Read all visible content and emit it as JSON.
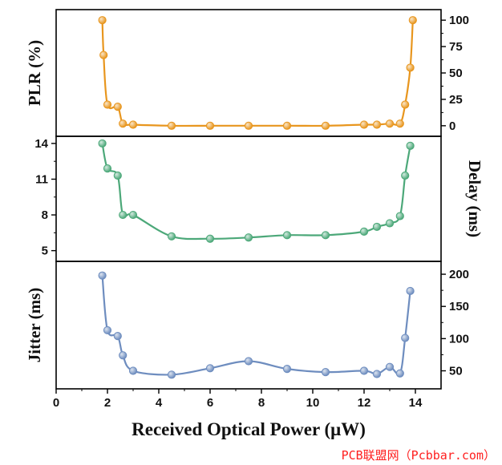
{
  "chart_data": {
    "type": "line",
    "xlabel": "Received Optical Power (μW)",
    "xlim": [
      0,
      15
    ],
    "xticks": [
      "0",
      "2",
      "4",
      "6",
      "8",
      "10",
      "12",
      "14"
    ],
    "panels": [
      {
        "name": "PLR",
        "ylabel": "PLR (%)",
        "ylabel_side": "left",
        "tick_side": "right",
        "ylim": [
          -10,
          110
        ],
        "yticks": [
          "0",
          "25",
          "50",
          "75",
          "100"
        ],
        "color": "#E8961E",
        "x": [
          1.8,
          1.85,
          2.0,
          2.4,
          2.6,
          3.0,
          4.5,
          6.0,
          7.5,
          9.0,
          10.5,
          12.0,
          12.5,
          13.0,
          13.4,
          13.6,
          13.8,
          13.9
        ],
        "values": [
          100,
          67,
          20,
          18,
          2,
          1,
          0,
          0,
          0,
          0,
          0,
          1,
          1,
          2,
          2,
          20,
          55,
          100
        ]
      },
      {
        "name": "Delay",
        "ylabel": "Delay (ms)",
        "ylabel_side": "right",
        "tick_side": "left",
        "ylim": [
          4.1,
          14.6
        ],
        "yticks": [
          "5",
          "8",
          "11",
          "14"
        ],
        "color": "#4CA879",
        "x": [
          1.8,
          2.0,
          2.4,
          2.6,
          3.0,
          4.5,
          6.0,
          7.5,
          9.0,
          10.5,
          12.0,
          12.5,
          13.0,
          13.4,
          13.6,
          13.8
        ],
        "values": [
          14.0,
          11.9,
          11.3,
          8.0,
          8.0,
          6.2,
          6.0,
          6.1,
          6.3,
          6.3,
          6.6,
          7.0,
          7.3,
          7.9,
          11.3,
          13.8
        ]
      },
      {
        "name": "Jitter",
        "ylabel": "Jitter (ms)",
        "ylabel_side": "left",
        "tick_side": "right",
        "ylim": [
          22,
          220
        ],
        "yticks": [
          "50",
          "100",
          "150",
          "200"
        ],
        "color": "#6E8DBF",
        "x": [
          1.8,
          2.0,
          2.4,
          2.6,
          3.0,
          4.5,
          6.0,
          7.5,
          9.0,
          10.5,
          12.0,
          12.5,
          13.0,
          13.4,
          13.6,
          13.8
        ],
        "values": [
          198,
          113,
          104,
          74,
          50,
          44,
          54,
          65,
          53,
          48,
          50,
          45,
          56,
          46,
          101,
          174
        ]
      }
    ]
  },
  "watermark": "PCB联盟网（Pcbbar.com）"
}
